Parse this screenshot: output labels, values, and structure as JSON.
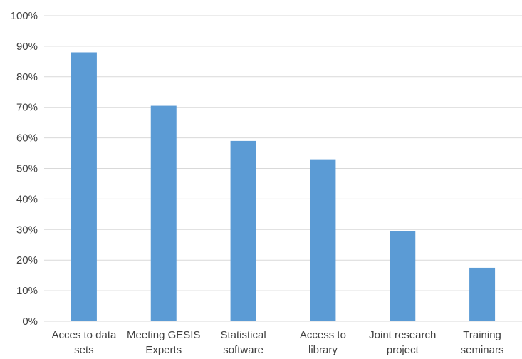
{
  "chart_data": {
    "type": "bar",
    "title": "",
    "xlabel": "",
    "ylabel": "",
    "categories": [
      [
        "Acces to data",
        "sets"
      ],
      [
        "Meeting GESIS",
        "Experts"
      ],
      [
        "Statistical",
        "software"
      ],
      [
        "Access to",
        "library"
      ],
      [
        "Joint research",
        "project"
      ],
      [
        "Training",
        "seminars"
      ]
    ],
    "values": [
      88,
      70.5,
      59,
      53,
      29.5,
      17.5
    ],
    "ylim": [
      0,
      100
    ],
    "y_ticks": [
      "0%",
      "10%",
      "20%",
      "30%",
      "40%",
      "50%",
      "60%",
      "70%",
      "80%",
      "90%",
      "100%"
    ],
    "grid": true,
    "legend": "none",
    "bar_color": "#5b9bd5",
    "grid_color": "#d9d9d9",
    "text_color": "#404040"
  }
}
